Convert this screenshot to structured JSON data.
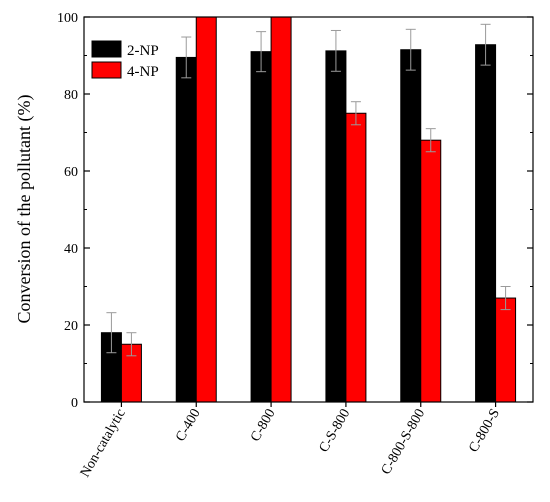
{
  "chart_data": {
    "type": "bar",
    "title": "",
    "xlabel": "",
    "ylabel": "Conversion of the pollutant (%)",
    "ylim": [
      0,
      100
    ],
    "yticks": [
      0,
      20,
      40,
      60,
      80,
      100
    ],
    "categories": [
      "Non-catalytic",
      "C-400",
      "C-800",
      "C-S-800",
      "C-800-S-800",
      "C-800-S"
    ],
    "series": [
      {
        "name": "2-NP",
        "color": "#000000",
        "values": [
          18,
          89.5,
          91,
          91.2,
          91.5,
          92.8
        ],
        "errors": [
          5.2,
          5.3,
          5.2,
          5.3,
          5.3,
          5.3
        ]
      },
      {
        "name": "4-NP",
        "color": "#ff0000",
        "values": [
          15,
          100,
          100,
          75,
          68,
          27
        ],
        "errors": [
          3.0,
          0,
          0,
          3.0,
          3.0,
          3.0
        ]
      }
    ],
    "legend": {
      "position": "top-left"
    },
    "grid": false
  }
}
